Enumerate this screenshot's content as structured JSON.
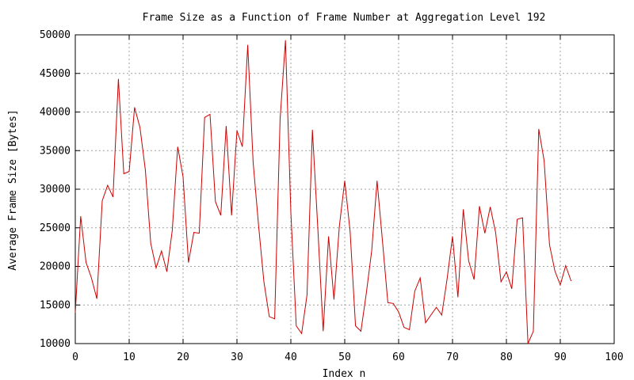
{
  "chart_data": {
    "type": "line",
    "title": "Frame Size as a Function of Frame Number at Aggregation Level 192",
    "xlabel": "Index n",
    "ylabel": "Average Frame Size [Bytes]",
    "xlim": [
      0,
      100
    ],
    "ylim": [
      10000,
      50000
    ],
    "x_ticks": [
      0,
      10,
      20,
      30,
      40,
      50,
      60,
      70,
      80,
      90,
      100
    ],
    "y_ticks": [
      10000,
      15000,
      20000,
      25000,
      30000,
      35000,
      40000,
      45000,
      50000
    ],
    "grid": true,
    "line_color": "#cc0000",
    "series": [
      {
        "x": [
          0,
          1,
          2,
          3,
          4,
          5,
          6,
          7,
          8,
          9,
          10,
          11,
          12,
          13,
          14,
          15,
          16,
          17,
          18,
          19,
          20,
          21,
          22,
          23,
          24,
          25,
          26,
          27,
          28,
          29,
          30,
          31,
          32,
          33,
          34,
          35,
          36,
          37,
          38,
          39,
          40,
          41,
          42,
          43,
          44,
          45,
          46,
          47,
          48,
          49,
          50,
          51,
          52,
          53,
          54,
          55,
          56,
          57,
          58,
          59,
          60,
          61,
          62,
          63,
          64,
          65,
          66,
          67,
          68,
          69,
          70,
          71,
          72,
          73,
          74,
          75,
          76,
          77,
          78,
          79,
          80,
          81,
          82,
          83,
          84,
          85,
          86,
          87,
          88,
          89,
          90,
          91,
          92
        ],
        "values": [
          14000,
          26500,
          20500,
          18500,
          15800,
          28500,
          30500,
          29000,
          44300,
          32000,
          32300,
          40600,
          38000,
          32500,
          23000,
          19800,
          22000,
          19300,
          24700,
          35500,
          31600,
          20500,
          24400,
          24300,
          39300,
          39700,
          28400,
          26600,
          38200,
          26600,
          37600,
          35500,
          48700,
          33500,
          25400,
          18000,
          13500,
          13200,
          39000,
          49300,
          27000,
          12300,
          11300,
          16300,
          37700,
          25000,
          11600,
          23900,
          15700,
          25200,
          31100,
          24500,
          12300,
          11600,
          16500,
          22000,
          31100,
          23300,
          15300,
          15200,
          14100,
          12100,
          11800,
          16800,
          18500,
          12700,
          13700,
          14700,
          13700,
          18400,
          23900,
          16000,
          27400,
          20700,
          18300,
          27800,
          24300,
          27700,
          24400,
          18000,
          19300,
          17100,
          26100,
          26300,
          10000,
          11600,
          37800,
          33700,
          22800,
          19400,
          17600,
          20100,
          18100
        ]
      }
    ]
  }
}
